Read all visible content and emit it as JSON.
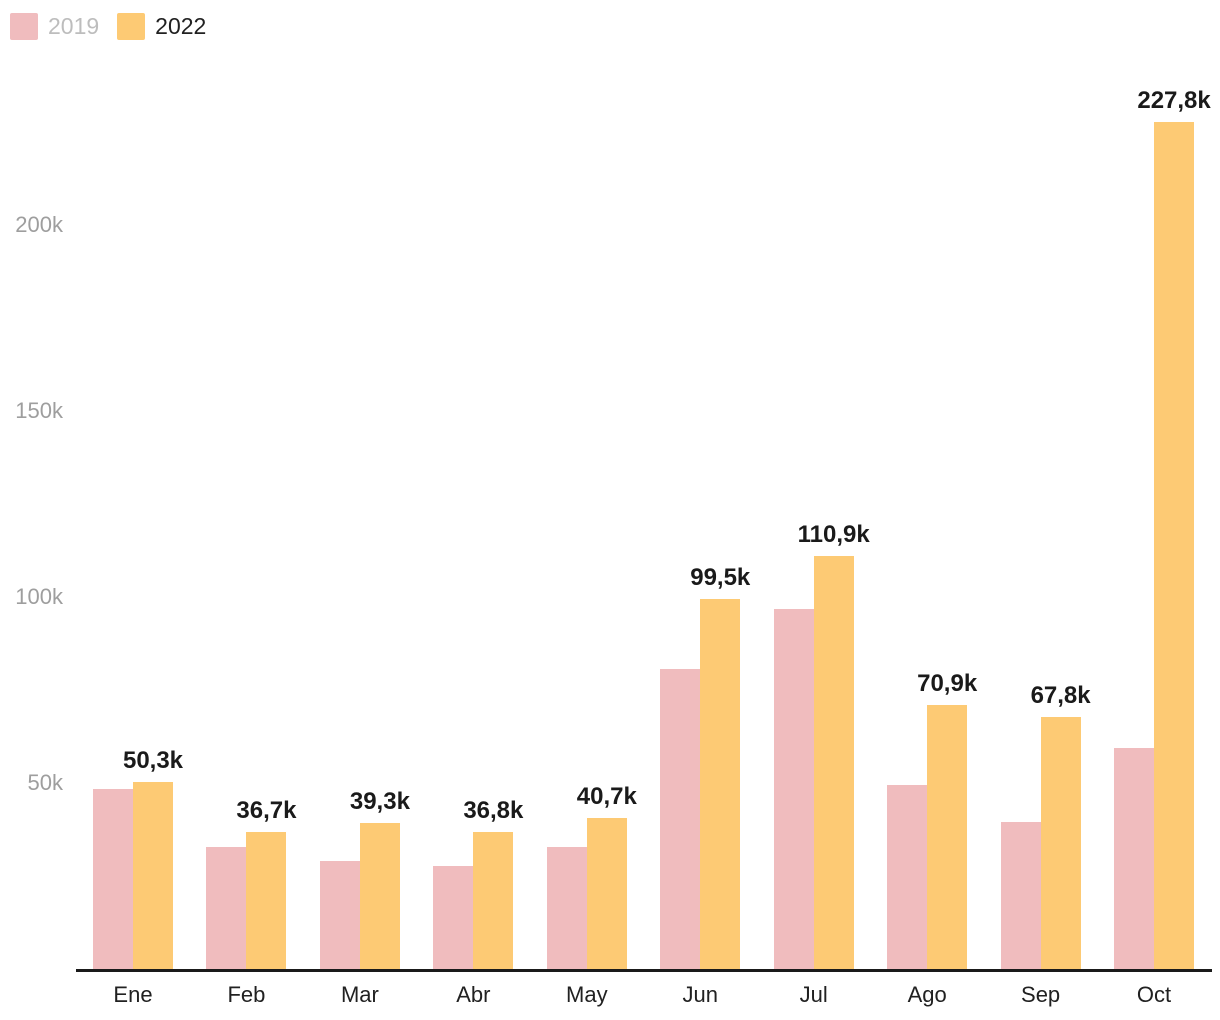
{
  "background_color": "#ffffff",
  "legend": {
    "position": "top-left",
    "items": [
      {
        "label": "2019",
        "swatch_color": "#F0BCBE",
        "text_color": "#BDBDBD"
      },
      {
        "label": "2022",
        "swatch_color": "#FDCA74",
        "text_color": "#212121"
      }
    ]
  },
  "chart_data": {
    "type": "bar",
    "subtype": "grouped-vertical",
    "title": "",
    "xlabel": "",
    "ylabel": "",
    "categories": [
      "Ene",
      "Feb",
      "Mar",
      "Abr",
      "May",
      "Jun",
      "Jul",
      "Ago",
      "Sep",
      "Oct"
    ],
    "series": [
      {
        "name": "2019",
        "color": "#F0BCBE",
        "values_unit": "thousands",
        "values_estimated_from_bar_heights": true,
        "values": [
          48.5,
          32.8,
          29.0,
          27.7,
          32.8,
          80.7,
          96.8,
          49.5,
          39.5,
          59.5
        ],
        "labels_shown": false
      },
      {
        "name": "2022",
        "color": "#FDCA74",
        "values_unit": "thousands",
        "values": [
          50.3,
          36.7,
          39.3,
          36.8,
          40.7,
          99.5,
          110.9,
          70.9,
          67.8,
          227.8
        ],
        "labels_shown": true,
        "labels": [
          "50,3k",
          "36,7k",
          "39,3k",
          "36,8k",
          "40,7k",
          "99,5k",
          "110,9k",
          "70,9k",
          "67,8k",
          "227,8k"
        ]
      }
    ],
    "y_axis": {
      "range_thousands": [
        0,
        230
      ],
      "gridlines": false,
      "tick_label_color": "#9e9e9e",
      "ticks": [
        {
          "value": 50,
          "label": "50k"
        },
        {
          "value": 100,
          "label": "100k"
        },
        {
          "value": 150,
          "label": "150k"
        },
        {
          "value": 200,
          "label": "200k"
        }
      ]
    },
    "x_axis": {
      "baseline_color": "#1a1a1a",
      "tick_label_color": "#212121"
    },
    "value_label_color": "#1a1a1a",
    "legend_position": "top-left"
  }
}
